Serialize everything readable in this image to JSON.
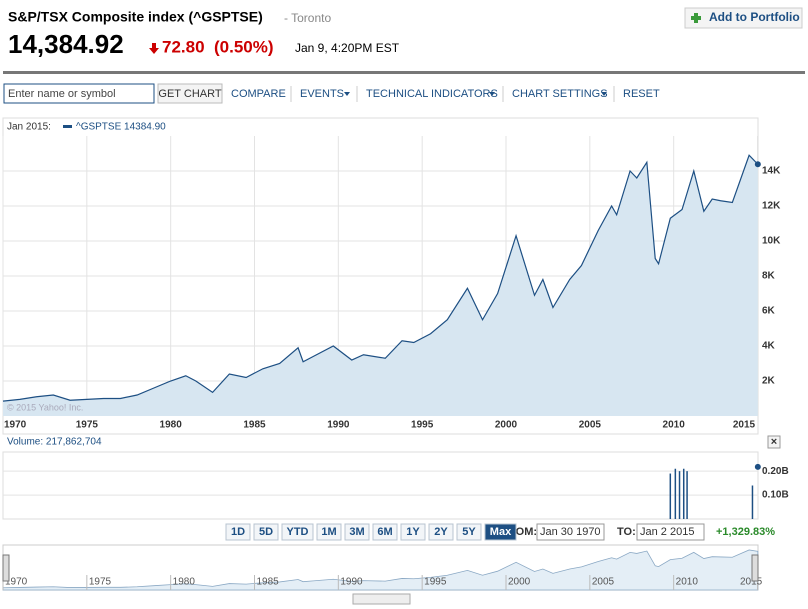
{
  "header": {
    "title": "S&P/TSX Composite index (^GSPTSE)",
    "exchange": "- Toronto",
    "portfolio_button": "Add to Portfolio",
    "price": "14,384.92",
    "change": "72.80",
    "change_percent": "(0.50%)",
    "time": "Jan 9, 4:20PM EST"
  },
  "toolbar": {
    "search_placeholder": "Enter name or symbol",
    "get_chart": "GET CHART",
    "compare": "COMPARE",
    "events": "EVENTS",
    "technical_indicators": "TECHNICAL INDICATORS",
    "chart_settings": "CHART SETTINGS",
    "reset": "RESET"
  },
  "range": {
    "buttons": [
      "1D",
      "5D",
      "YTD",
      "1M",
      "3M",
      "6M",
      "1Y",
      "2Y",
      "5Y",
      "Max"
    ],
    "from_label": "FROM:",
    "from": "Jan 30 1970",
    "to_label": "TO:",
    "to": "Jan 2 2015",
    "change": "+1,329.83%"
  },
  "close_button": "×",
  "chart_data": [
    {
      "type": "area",
      "legend_date": "Jan 2015:",
      "legend": "^GSPTSE 14384.90",
      "watermark": "© 2015 Yahoo! Inc.",
      "x": [
        1970,
        1971,
        1972,
        1973,
        1974,
        1975,
        1976,
        1977,
        1978,
        1979,
        1980,
        1980.9,
        1981.5,
        1982.5,
        1983.5,
        1984.5,
        1985.5,
        1986.5,
        1987.6,
        1987.9,
        1988.5,
        1989.7,
        1990.8,
        1991.5,
        1992.8,
        1993.8,
        1994.5,
        1995.5,
        1996.5,
        1997.7,
        1998.6,
        1999.5,
        2000.6,
        2001.7,
        2002.2,
        2002.8,
        2003.8,
        2004.5,
        2005.5,
        2006.3,
        2006.6,
        2007.4,
        2007.8,
        2008.4,
        2008.9,
        2009.1,
        2009.8,
        2010.5,
        2011.2,
        2011.8,
        2012.3,
        2012.8,
        2013.5,
        2014.5,
        2015.02
      ],
      "values": [
        850,
        950,
        1100,
        1200,
        900,
        950,
        1000,
        1000,
        1200,
        1600,
        2000,
        2300,
        2000,
        1350,
        2400,
        2200,
        2700,
        3000,
        3900,
        3100,
        3400,
        4000,
        3200,
        3500,
        3300,
        4300,
        4200,
        4700,
        5500,
        7300,
        5500,
        7000,
        10300,
        6900,
        7800,
        6200,
        7800,
        8600,
        10600,
        12000,
        11500,
        14000,
        13600,
        14500,
        9000,
        8700,
        11300,
        11800,
        14000,
        11700,
        12400,
        12300,
        12200,
        14900,
        14384.9
      ],
      "color": "#1d4f83",
      "fill": "#d7e6f1",
      "xlim": [
        1970,
        2015.03
      ],
      "ylim": [
        0,
        16000
      ],
      "xticks": [
        1970,
        1975,
        1980,
        1985,
        1990,
        1995,
        2000,
        2005,
        2010,
        2015
      ],
      "yticks": [
        {
          "value": 2000,
          "label": "2K"
        },
        {
          "value": 4000,
          "label": "4K"
        },
        {
          "value": 6000,
          "label": "6K"
        },
        {
          "value": 8000,
          "label": "8K"
        },
        {
          "value": 10000,
          "label": "10K"
        },
        {
          "value": 12000,
          "label": "12K"
        },
        {
          "value": 14000,
          "label": "14K"
        }
      ],
      "grid": true
    },
    {
      "type": "bar",
      "title": "Volume: 217,862,704",
      "x": [
        2009.8,
        2010.1,
        2010.35,
        2010.6,
        2010.8,
        2014.7,
        2015.02
      ],
      "values": [
        190000000,
        210000000,
        200000000,
        210000000,
        200000000,
        140000000,
        217862704
      ],
      "color": "#1d4f83",
      "xlim": [
        1970,
        2015.03
      ],
      "ylim": [
        0,
        280000000
      ],
      "yticks": [
        {
          "value": 100000000,
          "label": "0.10B"
        },
        {
          "value": 200000000,
          "label": "0.20B"
        }
      ],
      "grid": true
    }
  ]
}
